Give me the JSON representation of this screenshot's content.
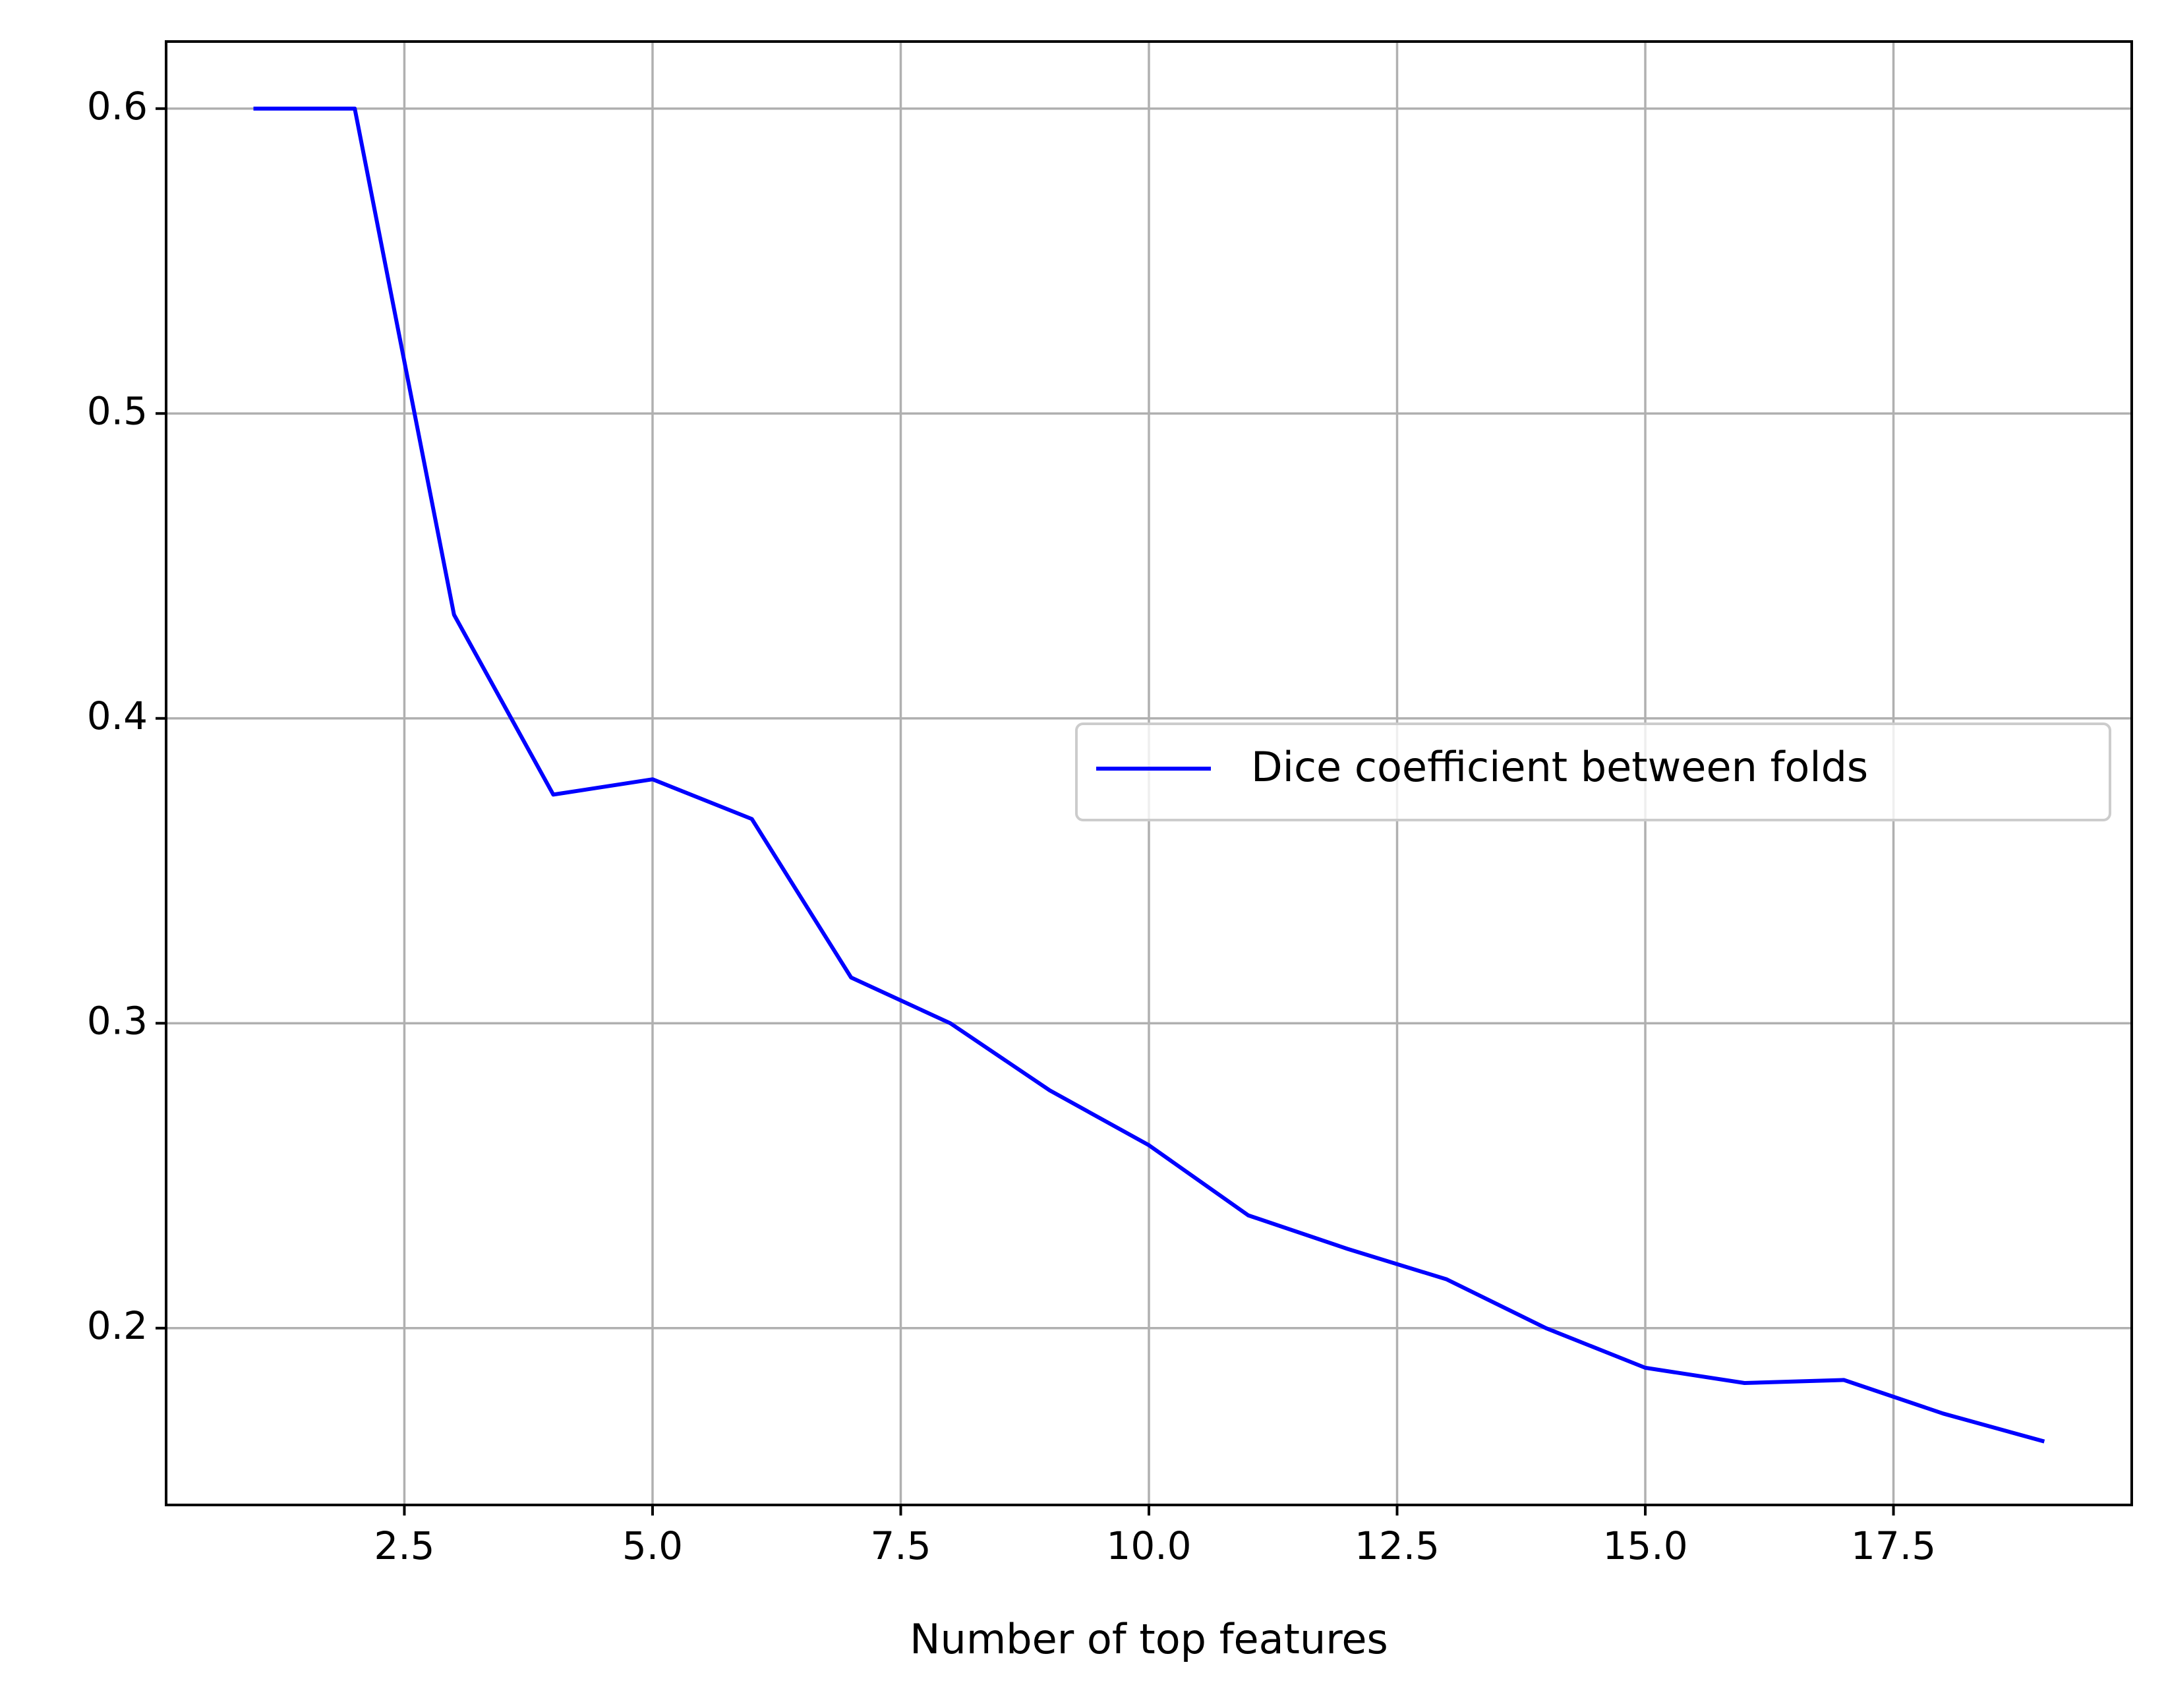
{
  "chart_data": {
    "type": "line",
    "title": "",
    "xlabel": "Number of top features",
    "ylabel": "",
    "xlim": [
      0.1,
      19.9
    ],
    "ylim": [
      0.142,
      0.622
    ],
    "xticks": [
      2.5,
      5.0,
      7.5,
      10.0,
      12.5,
      15.0,
      17.5
    ],
    "xtick_labels": [
      "2.5",
      "5.0",
      "7.5",
      "10.0",
      "12.5",
      "15.0",
      "17.5"
    ],
    "yticks": [
      0.2,
      0.3,
      0.4,
      0.5,
      0.6
    ],
    "ytick_labels": [
      "0.2",
      "0.3",
      "0.4",
      "0.5",
      "0.6"
    ],
    "grid": true,
    "legend_position": "center-right",
    "series": [
      {
        "name": "Dice coefficient between folds",
        "color": "#0000ff",
        "x": [
          1,
          2,
          3,
          4,
          5,
          6,
          7,
          8,
          9,
          10,
          11,
          12,
          13,
          14,
          15,
          16,
          17,
          18,
          19
        ],
        "y": [
          0.6,
          0.6,
          0.434,
          0.375,
          0.38,
          0.367,
          0.315,
          0.3,
          0.278,
          0.26,
          0.237,
          0.226,
          0.216,
          0.2,
          0.187,
          0.182,
          0.183,
          0.172,
          0.163
        ]
      }
    ]
  }
}
